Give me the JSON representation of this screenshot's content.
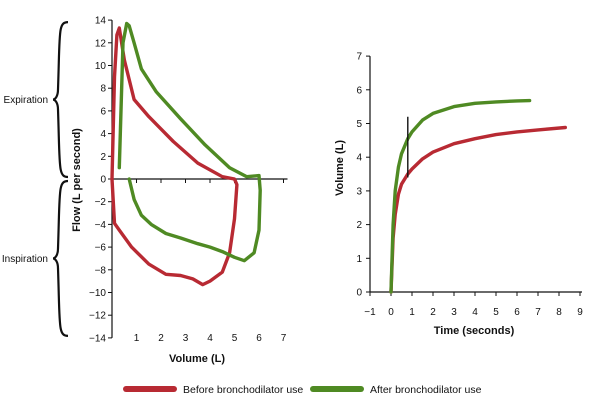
{
  "colors": {
    "before": "#b82a33",
    "after": "#4f8a23",
    "axis": "#111111"
  },
  "legend": [
    {
      "label": "Before bronchodilator use",
      "color_key": "before"
    },
    {
      "label": "After bronchodilator use",
      "color_key": "after"
    }
  ],
  "chart_data": [
    {
      "type": "line",
      "subtype": "flow-volume loop",
      "title": "",
      "xlabel": "Volume (L)",
      "ylabel": "Flow (L per second)",
      "xlim": [
        0,
        7
      ],
      "ylim": [
        -14,
        14
      ],
      "x_ticks": [
        1,
        2,
        3,
        4,
        5,
        6,
        7
      ],
      "y_ticks": [
        14,
        12,
        10,
        8,
        6,
        4,
        2,
        0,
        -2,
        -4,
        -6,
        -8,
        -10,
        -12,
        -14
      ],
      "brackets": [
        {
          "label": "Expiration",
          "from": 14,
          "to": 0
        },
        {
          "label": "Inspiration",
          "from": 0,
          "to": -14
        }
      ],
      "series": [
        {
          "name": "Before bronchodilator use",
          "color_key": "before",
          "x": [
            0,
            0.1,
            0.2,
            0.3,
            0.5,
            0.9,
            1.5,
            2.5,
            3.5,
            4.5,
            5.0,
            5.1,
            5.0,
            4.8,
            4.5,
            4.0,
            3.7,
            3.3,
            2.8,
            2.2,
            1.5,
            0.8,
            0.3,
            0.1,
            0
          ],
          "y": [
            0,
            9,
            12.7,
            13.3,
            10.5,
            7,
            5.5,
            3.3,
            1.4,
            0.2,
            0,
            -0.5,
            -3.5,
            -6.5,
            -8.2,
            -9.0,
            -9.3,
            -8.8,
            -8.5,
            -8.4,
            -7.5,
            -6.0,
            -4.5,
            -3.9,
            0
          ]
        },
        {
          "name": "After bronchodilator use",
          "color_key": "after",
          "x": [
            0.3,
            0.45,
            0.6,
            0.7,
            0.9,
            1.2,
            1.8,
            2.8,
            3.8,
            4.8,
            5.5,
            6.0,
            6.05,
            6.0,
            5.8,
            5.4,
            5.0,
            4.5,
            4.0,
            3.5,
            2.8,
            2.2,
            1.6,
            1.2,
            0.9,
            0.7
          ],
          "y": [
            1.0,
            12.0,
            13.7,
            13.5,
            12.0,
            9.7,
            7.7,
            5.3,
            3.0,
            1.0,
            0.2,
            0.3,
            -1.0,
            -4.5,
            -6.5,
            -7.2,
            -6.9,
            -6.4,
            -6.0,
            -5.7,
            -5.2,
            -4.8,
            -4.0,
            -3.2,
            -1.8,
            0
          ]
        }
      ]
    },
    {
      "type": "line",
      "subtype": "volume-time spirogram",
      "title": "",
      "xlabel": "Time (seconds)",
      "ylabel": "Volume (L)",
      "xlim": [
        -1,
        9
      ],
      "ylim": [
        0,
        7
      ],
      "x_ticks": [
        -1,
        0,
        1,
        2,
        3,
        4,
        5,
        6,
        7,
        8,
        9
      ],
      "y_ticks": [
        0,
        1,
        2,
        3,
        4,
        5,
        6,
        7
      ],
      "one_second_marker": {
        "x": 0.8,
        "y_from": 3.4,
        "y_to": 5.2
      },
      "series": [
        {
          "name": "Before bronchodilator use",
          "color_key": "before",
          "x": [
            0,
            0.1,
            0.2,
            0.35,
            0.5,
            0.8,
            1.0,
            1.5,
            2.0,
            3.0,
            4.0,
            5.0,
            6.0,
            7.0,
            8.3
          ],
          "y": [
            0,
            1.6,
            2.3,
            2.9,
            3.2,
            3.5,
            3.65,
            3.95,
            4.15,
            4.4,
            4.55,
            4.67,
            4.75,
            4.81,
            4.88
          ]
        },
        {
          "name": "After bronchodilator use",
          "color_key": "after",
          "x": [
            0,
            0.1,
            0.2,
            0.35,
            0.5,
            0.8,
            1.0,
            1.5,
            2.0,
            3.0,
            4.0,
            5.0,
            6.0,
            6.6
          ],
          "y": [
            0,
            2.0,
            3.0,
            3.7,
            4.1,
            4.55,
            4.75,
            5.1,
            5.3,
            5.5,
            5.6,
            5.64,
            5.67,
            5.68
          ]
        }
      ]
    }
  ]
}
